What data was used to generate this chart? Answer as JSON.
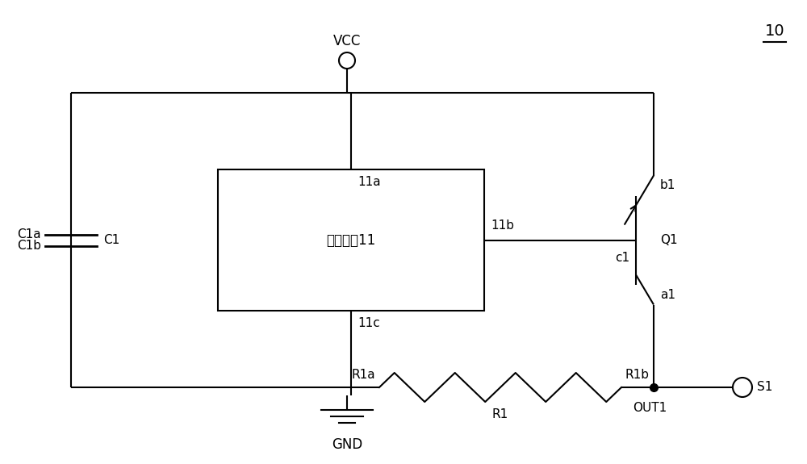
{
  "bg_color": "#ffffff",
  "line_color": "#000000",
  "lw": 1.5,
  "fs": 12,
  "fs_small": 11,
  "fig_num": "10",
  "box_label": "有源晶振11",
  "vcc_label": "VCC",
  "gnd_label": "GND",
  "s1_label": "S1",
  "out1_label": "OUT1",
  "r1_label": "R1",
  "r1a_label": "R1a",
  "r1b_label": "R1b",
  "c1_label": "C1",
  "c1a_label": "C1a",
  "c1b_label": "C1b",
  "q1_label": "Q1",
  "b1_label": "b1",
  "c1t_label": "c1",
  "a1_label": "a1",
  "pin11a_label": "11a",
  "pin11b_label": "11b",
  "pin11c_label": "11c"
}
